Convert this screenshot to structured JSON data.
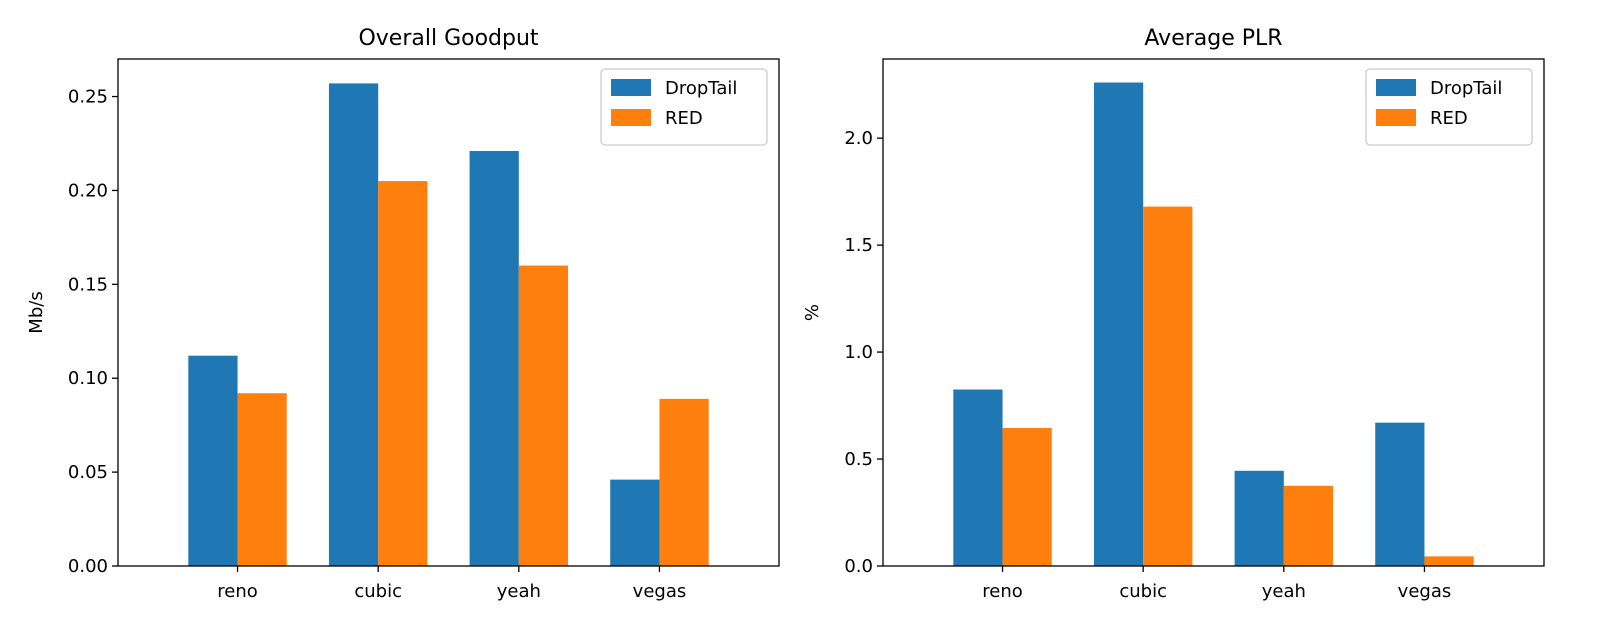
{
  "chart_data": [
    {
      "type": "bar",
      "title": "Overall Goodput",
      "xlabel": "",
      "ylabel": "Mb/s",
      "categories": [
        "reno",
        "cubic",
        "yeah",
        "vegas"
      ],
      "series": [
        {
          "name": "DropTail",
          "color": "#1f77b4",
          "values": [
            0.112,
            0.257,
            0.221,
            0.046
          ]
        },
        {
          "name": "RED",
          "color": "#ff7f0e",
          "values": [
            0.092,
            0.205,
            0.16,
            0.089
          ]
        }
      ],
      "ylim": [
        0,
        0.27
      ],
      "yticks": [
        0.0,
        0.05,
        0.1,
        0.15,
        0.2,
        0.25
      ],
      "ytick_labels": [
        "0.00",
        "0.05",
        "0.10",
        "0.15",
        "0.20",
        "0.25"
      ],
      "legend": "top-right",
      "grid": false
    },
    {
      "type": "bar",
      "title": "Average PLR",
      "xlabel": "",
      "ylabel": "%",
      "categories": [
        "reno",
        "cubic",
        "yeah",
        "vegas"
      ],
      "series": [
        {
          "name": "DropTail",
          "color": "#1f77b4",
          "values": [
            0.825,
            2.26,
            0.445,
            0.67
          ]
        },
        {
          "name": "RED",
          "color": "#ff7f0e",
          "values": [
            0.645,
            1.68,
            0.375,
            0.045
          ]
        }
      ],
      "ylim": [
        0,
        2.37
      ],
      "yticks": [
        0.0,
        0.5,
        1.0,
        1.5,
        2.0
      ],
      "ytick_labels": [
        "0.0",
        "0.5",
        "1.0",
        "1.5",
        "2.0"
      ],
      "legend": "top-right",
      "grid": false
    }
  ]
}
